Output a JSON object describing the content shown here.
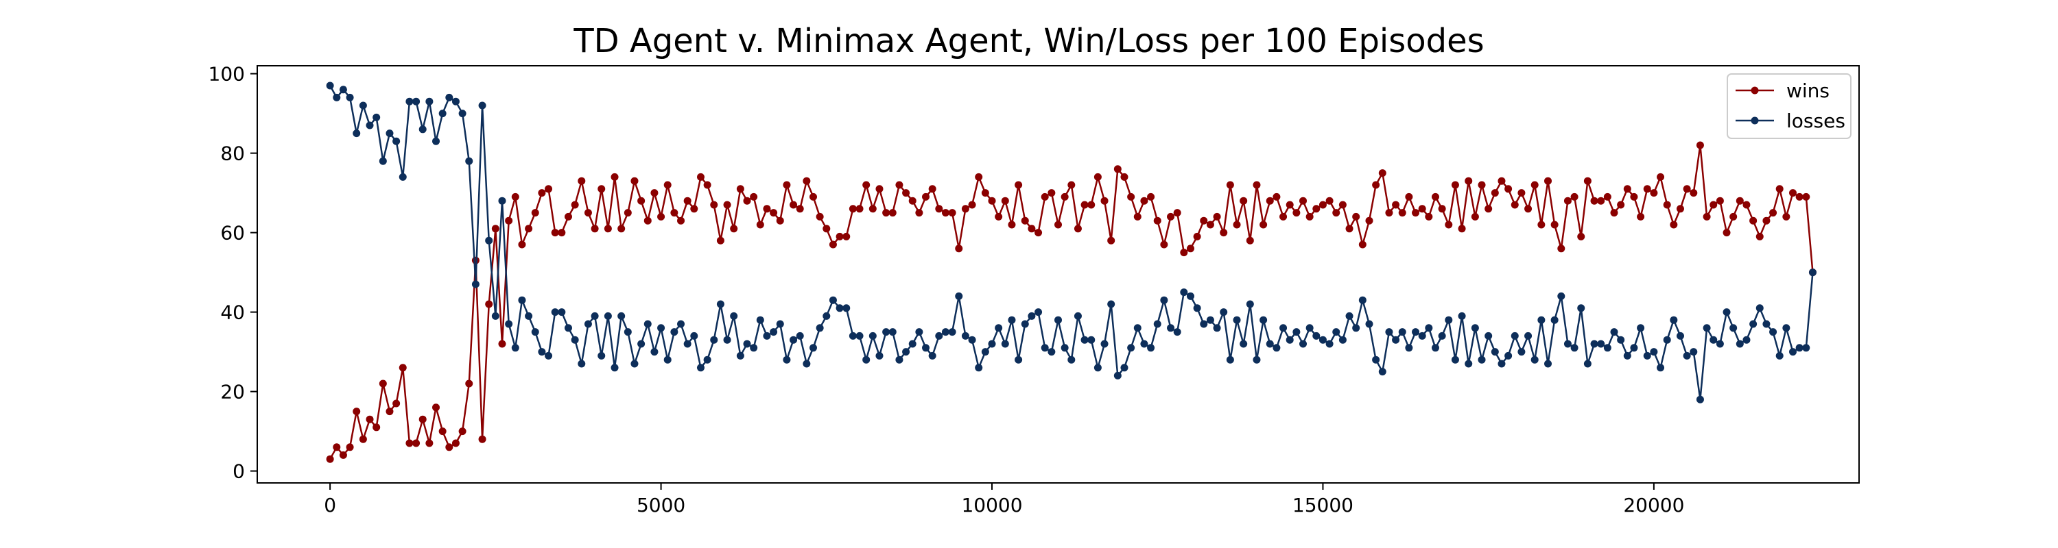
{
  "chart_data": {
    "type": "line",
    "title": "TD Agent v. Minimax Agent, Win/Loss per 100 Episodes",
    "xlabel": "",
    "ylabel": "",
    "xlim": [
      -1100,
      23100
    ],
    "ylim": [
      -3,
      102
    ],
    "xticks": [
      0,
      5000,
      10000,
      15000,
      20000
    ],
    "yticks": [
      0,
      20,
      40,
      60,
      80,
      100
    ],
    "grid": false,
    "legend_position": "top-right",
    "x_start": 0,
    "x_step": 100,
    "series": [
      {
        "name": "wins",
        "color": "#8b0000",
        "values": [
          3,
          6,
          4,
          6,
          15,
          8,
          13,
          11,
          22,
          15,
          17,
          26,
          7,
          7,
          13,
          7,
          16,
          10,
          6,
          7,
          10,
          22,
          53,
          8,
          42,
          61,
          32,
          63,
          69,
          57,
          61,
          65,
          70,
          71,
          60,
          60,
          64,
          67,
          73,
          65,
          61,
          71,
          61,
          74,
          61,
          65,
          73,
          68,
          63,
          70,
          64,
          72,
          65,
          63,
          68,
          66,
          74,
          72,
          67,
          58,
          67,
          61,
          71,
          68,
          69,
          62,
          66,
          65,
          63,
          72,
          67,
          66,
          73,
          69,
          64,
          61,
          57,
          59,
          59,
          66,
          66,
          72,
          66,
          71,
          65,
          65,
          72,
          70,
          68,
          65,
          69,
          71,
          66,
          65,
          65,
          56,
          66,
          67,
          74,
          70,
          68,
          64,
          68,
          62,
          72,
          63,
          61,
          60,
          69,
          70,
          62,
          69,
          72,
          61,
          67,
          67,
          74,
          68,
          58,
          76,
          74,
          69,
          64,
          68,
          69,
          63,
          57,
          64,
          65,
          55,
          56,
          59,
          63,
          62,
          64,
          60,
          72,
          62,
          68,
          58,
          72,
          62,
          68,
          69,
          64,
          67,
          65,
          68,
          64,
          66,
          67,
          68,
          65,
          67,
          61,
          64,
          57,
          63,
          72,
          75,
          65,
          67,
          65,
          69,
          65,
          66,
          64,
          69,
          66,
          62,
          72,
          61,
          73,
          64,
          72,
          66,
          70,
          73,
          71,
          67,
          70,
          66,
          72,
          62,
          73,
          62,
          56,
          68,
          69,
          59,
          73,
          68,
          68,
          69,
          65,
          67,
          71,
          69,
          64,
          71,
          70,
          74,
          67,
          62,
          66,
          71,
          70,
          82,
          64,
          67,
          68,
          60,
          64,
          68,
          67,
          63,
          59,
          63,
          65,
          71,
          64,
          70,
          69,
          69,
          50
        ]
      },
      {
        "name": "losses",
        "color": "#0d2e5a",
        "values": [
          97,
          94,
          96,
          94,
          85,
          92,
          87,
          89,
          78,
          85,
          83,
          74,
          93,
          93,
          86,
          93,
          83,
          90,
          94,
          93,
          90,
          78,
          47,
          92,
          58,
          39,
          68,
          37,
          31,
          43,
          39,
          35,
          30,
          29,
          40,
          40,
          36,
          33,
          27,
          37,
          39,
          29,
          39,
          26,
          39,
          35,
          27,
          32,
          37,
          30,
          36,
          28,
          35,
          37,
          32,
          34,
          26,
          28,
          33,
          42,
          33,
          39,
          29,
          32,
          31,
          38,
          34,
          35,
          37,
          28,
          33,
          34,
          27,
          31,
          36,
          39,
          43,
          41,
          41,
          34,
          34,
          28,
          34,
          29,
          35,
          35,
          28,
          30,
          32,
          35,
          31,
          29,
          34,
          35,
          35,
          44,
          34,
          33,
          26,
          30,
          32,
          36,
          32,
          38,
          28,
          37,
          39,
          40,
          31,
          30,
          38,
          31,
          28,
          39,
          33,
          33,
          26,
          32,
          42,
          24,
          26,
          31,
          36,
          32,
          31,
          37,
          43,
          36,
          35,
          45,
          44,
          41,
          37,
          38,
          36,
          40,
          28,
          38,
          32,
          42,
          28,
          38,
          32,
          31,
          36,
          33,
          35,
          32,
          36,
          34,
          33,
          32,
          35,
          33,
          39,
          36,
          43,
          37,
          28,
          25,
          35,
          33,
          35,
          31,
          35,
          34,
          36,
          31,
          34,
          38,
          28,
          39,
          27,
          36,
          28,
          34,
          30,
          27,
          29,
          34,
          30,
          34,
          28,
          38,
          27,
          38,
          44,
          32,
          31,
          41,
          27,
          32,
          32,
          31,
          35,
          33,
          29,
          31,
          36,
          29,
          30,
          26,
          33,
          38,
          34,
          29,
          30,
          18,
          36,
          33,
          32,
          40,
          36,
          32,
          33,
          37,
          41,
          37,
          35,
          29,
          36,
          30,
          31,
          31,
          50
        ]
      }
    ]
  }
}
